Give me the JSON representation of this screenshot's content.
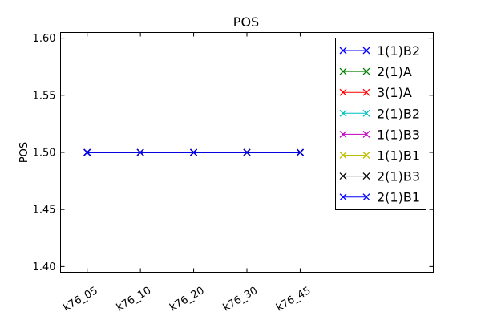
{
  "chart_data": {
    "type": "line",
    "title": "POS",
    "xlabel": "",
    "ylabel": "POS",
    "categories": [
      "k76_05",
      "k76_10",
      "k76_20",
      "k76_30",
      "k76_45"
    ],
    "xlim": [
      -0.5,
      6.5
    ],
    "ylim": [
      1.395,
      1.605
    ],
    "yticks": [
      "1.40",
      "1.45",
      "1.50",
      "1.55",
      "1.60"
    ],
    "grid": false,
    "legend_position": "top-right",
    "marker": "x",
    "series": [
      {
        "name": "1(1)B2",
        "color": "#0000ff",
        "values": [
          1.5,
          1.5,
          1.5,
          1.5,
          1.5
        ]
      },
      {
        "name": "2(1)A",
        "color": "#008000",
        "values": [
          1.5,
          1.5,
          1.5,
          1.5,
          1.5
        ]
      },
      {
        "name": "3(1)A",
        "color": "#ff0000",
        "values": [
          1.5,
          1.5,
          1.5,
          1.5,
          1.5
        ]
      },
      {
        "name": "2(1)B2",
        "color": "#00bfbf",
        "values": [
          1.5,
          1.5,
          1.5,
          1.5,
          1.5
        ]
      },
      {
        "name": "1(1)B3",
        "color": "#bf00bf",
        "values": [
          1.5,
          1.5,
          1.5,
          1.5,
          1.5
        ]
      },
      {
        "name": "1(1)B1",
        "color": "#bfbf00",
        "values": [
          1.5,
          1.5,
          1.5,
          1.5,
          1.5
        ]
      },
      {
        "name": "2(1)B3",
        "color": "#000000",
        "values": [
          1.5,
          1.5,
          1.5,
          1.5,
          1.5
        ]
      },
      {
        "name": "2(1)B1",
        "color": "#0000ff",
        "values": [
          1.5,
          1.5,
          1.5,
          1.5,
          1.5
        ]
      }
    ]
  }
}
